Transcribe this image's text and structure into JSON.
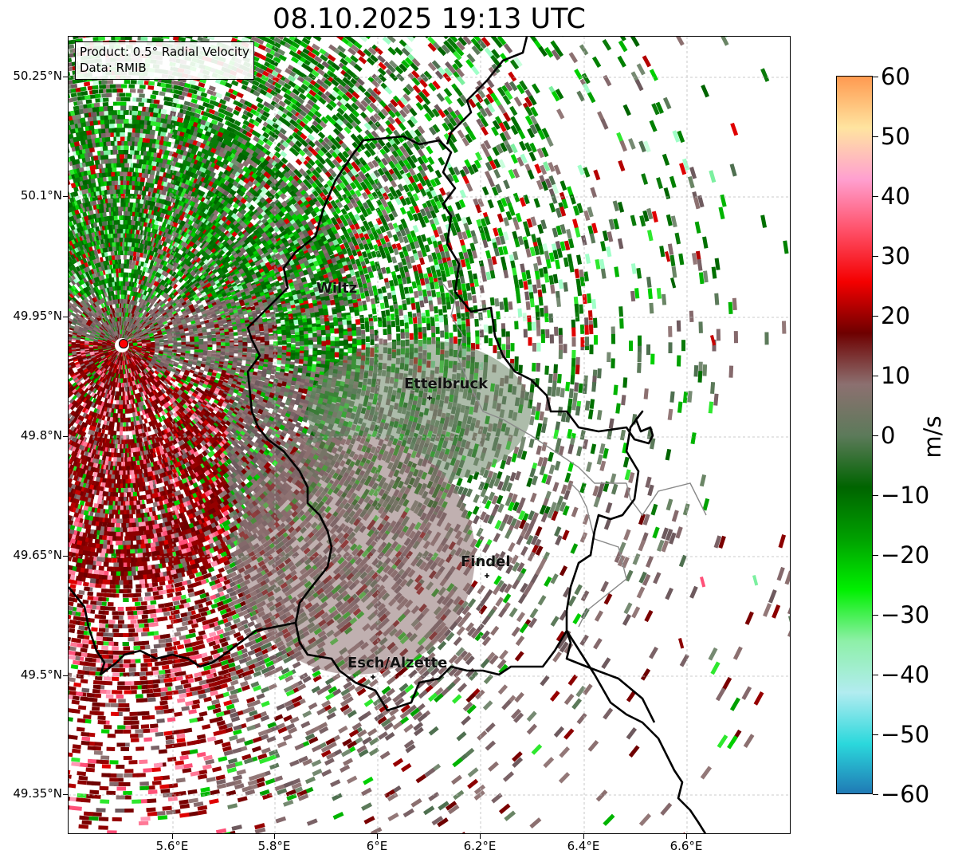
{
  "title": "08.10.2025 19:13 UTC",
  "info": {
    "product": "Product: 0.5° Radial Velocity",
    "source": "Data: RMIB"
  },
  "axes": {
    "y_ticks": [
      "50.25°N",
      "50.1°N",
      "49.95°N",
      "49.8°N",
      "49.65°N",
      "49.5°N",
      "49.35°N"
    ],
    "x_ticks": [
      "5.6°E",
      "5.8°E",
      "6°E",
      "6.2°E",
      "6.4°E",
      "6.6°E"
    ],
    "grid": true
  },
  "colorbar": {
    "label": "m/s",
    "ticks": [
      "60",
      "50",
      "40",
      "30",
      "20",
      "10",
      "0",
      "−10",
      "−20",
      "−30",
      "−40",
      "−50",
      "−60"
    ],
    "range": [
      -60,
      60
    ],
    "colors": [
      "#1f77b4",
      "#2bd8dc",
      "#b2ecf0",
      "#8ef0a8",
      "#00f000",
      "#00a000",
      "#006400",
      "#5c7a5a",
      "#8c7070",
      "#6e0000",
      "#f40000",
      "#ff5068",
      "#ffa0d0",
      "#ffe4a0",
      "#ff9a50"
    ]
  },
  "cities": [
    {
      "name": "Wiltz"
    },
    {
      "name": "Ettelbruck"
    },
    {
      "name": "Findel"
    },
    {
      "name": "Esch/Alzette"
    }
  ],
  "radar_site": {
    "color": "#ff0000"
  }
}
